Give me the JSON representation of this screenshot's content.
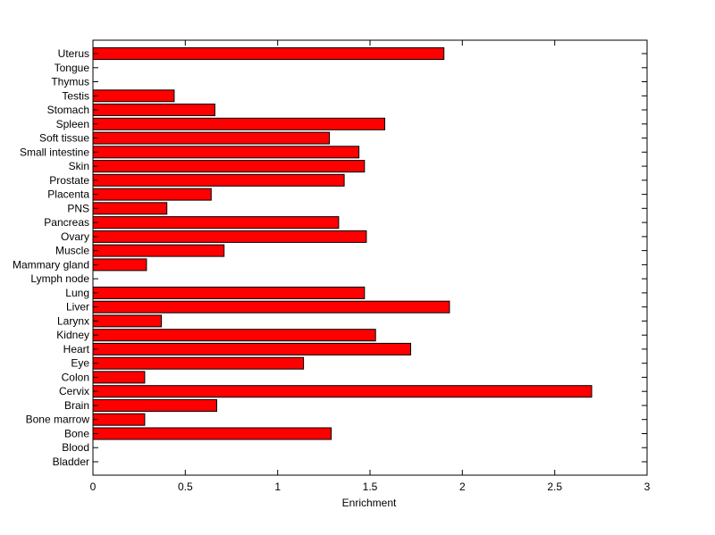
{
  "chart_data": {
    "type": "bar",
    "orientation": "horizontal",
    "xlabel": "Enrichment",
    "ylabel": "",
    "title": "",
    "xlim": [
      0,
      3
    ],
    "xticks": [
      0,
      0.5,
      1,
      1.5,
      2,
      2.5,
      3
    ],
    "xtick_labels": [
      "0",
      "0.5",
      "1",
      "1.5",
      "2",
      "2.5",
      "3"
    ],
    "grid": false,
    "bar_color": "#ff0000",
    "bar_edge_color": "#000000",
    "categories": [
      "Bladder",
      "Blood",
      "Bone",
      "Bone marrow",
      "Brain",
      "Cervix",
      "Colon",
      "Eye",
      "Heart",
      "Kidney",
      "Larynx",
      "Liver",
      "Lung",
      "Lymph node",
      "Mammary gland",
      "Muscle",
      "Ovary",
      "Pancreas",
      "PNS",
      "Placenta",
      "Prostate",
      "Skin",
      "Small intestine",
      "Soft tissue",
      "Spleen",
      "Stomach",
      "Testis",
      "Thymus",
      "Tongue",
      "Uterus"
    ],
    "values": [
      0,
      0,
      1.29,
      0.28,
      0.67,
      2.7,
      0.28,
      1.14,
      1.72,
      1.53,
      0.37,
      1.93,
      1.47,
      0,
      0.29,
      0.71,
      1.48,
      1.33,
      0.4,
      0.64,
      1.36,
      1.47,
      1.44,
      1.28,
      1.58,
      0.66,
      0.44,
      0,
      0,
      1.9
    ]
  }
}
